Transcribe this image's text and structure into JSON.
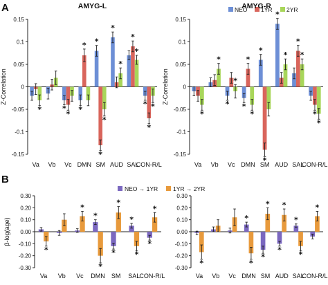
{
  "panel_labels": [
    "A",
    "B"
  ],
  "colors": {
    "NEO": "#6d8fd6",
    "1YR": "#d9655c",
    "2YR": "#a8d65a",
    "B_NEO_1YR": "#7b68c0",
    "B_1YR_2YR": "#e89a3c"
  },
  "chart_data": [
    {
      "panel": "A",
      "title": "AMYG-L",
      "type": "bar",
      "ylabel": "Z-Correlation",
      "ylim": [
        -0.15,
        0.15
      ],
      "yticks": [
        -0.15,
        -0.1,
        -0.05,
        0,
        0.05,
        0.1,
        0.15
      ],
      "categories": [
        "Va",
        "Vb",
        "Vc",
        "DMN",
        "SM",
        "AUD",
        "SAL",
        "CON-R/L"
      ],
      "grid": false,
      "legend_position": "top-right",
      "series": [
        {
          "name": "NEO",
          "values": [
            -0.02,
            -0.015,
            -0.03,
            -0.03,
            0.08,
            0.11,
            0.07,
            -0.02
          ],
          "errors": [
            0.01,
            0.012,
            0.01,
            0.012,
            0.012,
            0.012,
            0.01,
            0.01
          ]
        },
        {
          "name": "1YR",
          "values": [
            -0.005,
            0.005,
            -0.04,
            0.07,
            -0.13,
            0.01,
            0.09,
            -0.07
          ],
          "errors": [
            0.012,
            0.012,
            0.012,
            0.014,
            0.012,
            0.012,
            0.012,
            0.012
          ]
        },
        {
          "name": "2YR",
          "values": [
            -0.03,
            0.02,
            -0.02,
            -0.03,
            -0.05,
            0.03,
            0.06,
            -0.02
          ],
          "errors": [
            0.012,
            0.015,
            0.012,
            0.012,
            0.015,
            0.012,
            0.01,
            0.015
          ]
        }
      ],
      "annotations": [
        {
          "category": "Va",
          "series": "2YR",
          "text": "*",
          "where": "below"
        },
        {
          "category": "Vc",
          "series": "NEO",
          "text": "*",
          "where": "below"
        },
        {
          "category": "Vc",
          "series": "1YR",
          "text": "*",
          "where": "below"
        },
        {
          "category": "DMN",
          "series": "NEO",
          "text": "*",
          "where": "below"
        },
        {
          "category": "DMN",
          "series": "1YR",
          "text": "*",
          "where": "above"
        },
        {
          "category": "SM",
          "series": "NEO",
          "text": "*",
          "where": "above"
        },
        {
          "category": "SM",
          "series": "1YR",
          "text": "*",
          "where": "below"
        },
        {
          "category": "SM",
          "series": "2YR",
          "text": "*",
          "where": "below"
        },
        {
          "category": "AUD",
          "series": "NEO",
          "text": "*",
          "where": "above"
        },
        {
          "category": "AUD",
          "series": "2YR",
          "text": "*",
          "where": "above"
        },
        {
          "category": "SAL",
          "series": "1YR",
          "text": "*",
          "where": "above"
        },
        {
          "category": "SAL",
          "series": "2YR",
          "text": "*",
          "where": "above"
        },
        {
          "category": "CON-R/L",
          "series": "NEO",
          "text": "*",
          "where": "below"
        },
        {
          "category": "CON-R/L",
          "series": "1YR",
          "text": "*",
          "where": "below"
        },
        {
          "category": "CON-R/L",
          "series": "2YR",
          "text": "*",
          "where": "below"
        }
      ]
    },
    {
      "panel": "A",
      "title": "AMYG-R",
      "type": "bar",
      "ylabel": "Z-Correlation",
      "ylim": [
        -0.15,
        0.15
      ],
      "yticks": [
        -0.15,
        -0.1,
        -0.05,
        0,
        0.05,
        0.1,
        0.15
      ],
      "categories": [
        "Va",
        "Vb",
        "Vc",
        "DMN",
        "SM",
        "AUD",
        "SAL",
        "CON-R/L"
      ],
      "grid": false,
      "series": [
        {
          "name": "NEO",
          "values": [
            -0.01,
            0.01,
            -0.02,
            -0.025,
            0.06,
            0.14,
            0.03,
            -0.02
          ],
          "errors": [
            0.01,
            0.01,
            0.01,
            0.01,
            0.012,
            0.012,
            0.012,
            0.01
          ]
        },
        {
          "name": "1YR",
          "values": [
            -0.02,
            0.015,
            0.02,
            0.04,
            -0.14,
            0.02,
            0.08,
            -0.04
          ],
          "errors": [
            0.012,
            0.012,
            0.012,
            0.012,
            0.015,
            0.012,
            0.012,
            0.012
          ]
        },
        {
          "name": "2YR",
          "values": [
            -0.04,
            0.04,
            -0.01,
            -0.04,
            -0.05,
            0.05,
            0.05,
            -0.06
          ],
          "errors": [
            0.012,
            0.012,
            0.015,
            0.012,
            0.015,
            0.012,
            0.012,
            0.012
          ]
        }
      ],
      "annotations": [
        {
          "category": "Va",
          "series": "2YR",
          "text": "*",
          "where": "below"
        },
        {
          "category": "Vb",
          "series": "2YR",
          "text": "*",
          "where": "above"
        },
        {
          "category": "Vc",
          "series": "NEO",
          "text": "*",
          "where": "below"
        },
        {
          "category": "Vc",
          "series": "2YR",
          "text": "*",
          "where": "above"
        },
        {
          "category": "DMN",
          "series": "NEO",
          "text": "*",
          "where": "below"
        },
        {
          "category": "DMN",
          "series": "1YR",
          "text": "*",
          "where": "above"
        },
        {
          "category": "DMN",
          "series": "2YR",
          "text": "*",
          "where": "below"
        },
        {
          "category": "SM",
          "series": "NEO",
          "text": "*",
          "where": "above"
        },
        {
          "category": "SM",
          "series": "1YR",
          "text": "*",
          "where": "below"
        },
        {
          "category": "AUD",
          "series": "NEO",
          "text": "*",
          "where": "above"
        },
        {
          "category": "AUD",
          "series": "2YR",
          "text": "*",
          "where": "above"
        },
        {
          "category": "SAL",
          "series": "1YR",
          "text": "*",
          "where": "above"
        },
        {
          "category": "SAL",
          "series": "2YR",
          "text": "*",
          "where": "above"
        },
        {
          "category": "CON-R/L",
          "series": "1YR",
          "text": "*",
          "where": "below"
        },
        {
          "category": "CON-R/L",
          "series": "2YR",
          "text": "*",
          "where": "below"
        }
      ]
    },
    {
      "panel": "B",
      "title": "",
      "type": "bar",
      "ylabel": "β-log(age)",
      "ylim": [
        -0.3,
        0.3
      ],
      "yticks": [
        -0.3,
        -0.2,
        -0.1,
        0,
        0.1,
        0.2,
        0.3
      ],
      "ytick_labels": [
        "-0.30",
        "-0.20",
        "-0.10",
        "0.00",
        "0.10",
        "0.20",
        "0.30"
      ],
      "categories": [
        "Va",
        "Vb",
        "Vc",
        "DMN",
        "SM",
        "SAL",
        "CON-R/L"
      ],
      "grid": false,
      "legend_position": "top-center",
      "series": [
        {
          "name": "NEO → 1YR",
          "values": [
            0.02,
            -0.01,
            0.01,
            0.08,
            -0.12,
            0.05,
            -0.05
          ],
          "errors": [
            0.015,
            0.02,
            0.015,
            0.02,
            0.025,
            0.02,
            0.02
          ]
        },
        {
          "name": "1YR → 2YR",
          "values": [
            -0.08,
            0.1,
            0.13,
            -0.2,
            0.16,
            -0.12,
            0.12
          ],
          "errors": [
            0.04,
            0.05,
            0.04,
            0.06,
            0.05,
            0.04,
            0.04
          ]
        }
      ],
      "annotations": [
        {
          "category": "Va",
          "series": "1YR → 2YR",
          "text": "*",
          "where": "below"
        },
        {
          "category": "Vc",
          "series": "1YR → 2YR",
          "text": "*",
          "where": "above"
        },
        {
          "category": "DMN",
          "series": "NEO → 1YR",
          "text": "*",
          "where": "above"
        },
        {
          "category": "DMN",
          "series": "1YR → 2YR",
          "text": "*",
          "where": "below"
        },
        {
          "category": "SM",
          "series": "NEO → 1YR",
          "text": "*",
          "where": "below"
        },
        {
          "category": "SM",
          "series": "1YR → 2YR",
          "text": "*",
          "where": "above"
        },
        {
          "category": "SAL",
          "series": "NEO → 1YR",
          "text": "*",
          "where": "above"
        },
        {
          "category": "SAL",
          "series": "1YR → 2YR",
          "text": "*",
          "where": "below"
        },
        {
          "category": "CON-R/L",
          "series": "NEO → 1YR",
          "text": "*",
          "where": "below"
        },
        {
          "category": "CON-R/L",
          "series": "1YR → 2YR",
          "text": "*",
          "where": "above"
        }
      ]
    },
    {
      "panel": "B",
      "title": "",
      "type": "bar",
      "ylabel": "",
      "ylim": [
        -0.3,
        0.3
      ],
      "yticks": [
        -0.3,
        -0.2,
        -0.1,
        0,
        0.1,
        0.2,
        0.3
      ],
      "ytick_labels": [
        "-0.30",
        "-0.20",
        "-0.10",
        "0.00",
        "0.10",
        "0.20",
        "0.30"
      ],
      "categories": [
        "Va",
        "Vb",
        "Vc",
        "DMN",
        "SM",
        "AUD",
        "SAL",
        "CON-R/L"
      ],
      "grid": false,
      "series": [
        {
          "name": "NEO → 1YR",
          "values": [
            -0.01,
            0.02,
            0.01,
            0.06,
            -0.15,
            -0.1,
            0.05,
            -0.04
          ],
          "errors": [
            0.015,
            0.02,
            0.02,
            0.02,
            0.03,
            0.02,
            0.015,
            0.02
          ]
        },
        {
          "name": "1YR → 2YR",
          "values": [
            -0.17,
            0.05,
            0.12,
            -0.18,
            0.15,
            0.14,
            -0.12,
            0.13
          ],
          "errors": [
            0.06,
            0.05,
            0.07,
            0.05,
            0.05,
            0.05,
            0.04,
            0.04
          ]
        }
      ],
      "annotations": [
        {
          "category": "Va",
          "series": "1YR → 2YR",
          "text": "*",
          "where": "below"
        },
        {
          "category": "DMN",
          "series": "NEO → 1YR",
          "text": "*",
          "where": "above"
        },
        {
          "category": "DMN",
          "series": "1YR → 2YR",
          "text": "*",
          "where": "below"
        },
        {
          "category": "SM",
          "series": "NEO → 1YR",
          "text": "*",
          "where": "below"
        },
        {
          "category": "SM",
          "series": "1YR → 2YR",
          "text": "*",
          "where": "above"
        },
        {
          "category": "AUD",
          "series": "NEO → 1YR",
          "text": "*",
          "where": "below"
        },
        {
          "category": "AUD",
          "series": "1YR → 2YR",
          "text": "*",
          "where": "above"
        },
        {
          "category": "SAL",
          "series": "NEO → 1YR",
          "text": "*",
          "where": "above"
        },
        {
          "category": "SAL",
          "series": "1YR → 2YR",
          "text": "*",
          "where": "below"
        },
        {
          "category": "CON-R/L",
          "series": "1YR → 2YR",
          "text": "*",
          "where": "above"
        }
      ]
    }
  ]
}
